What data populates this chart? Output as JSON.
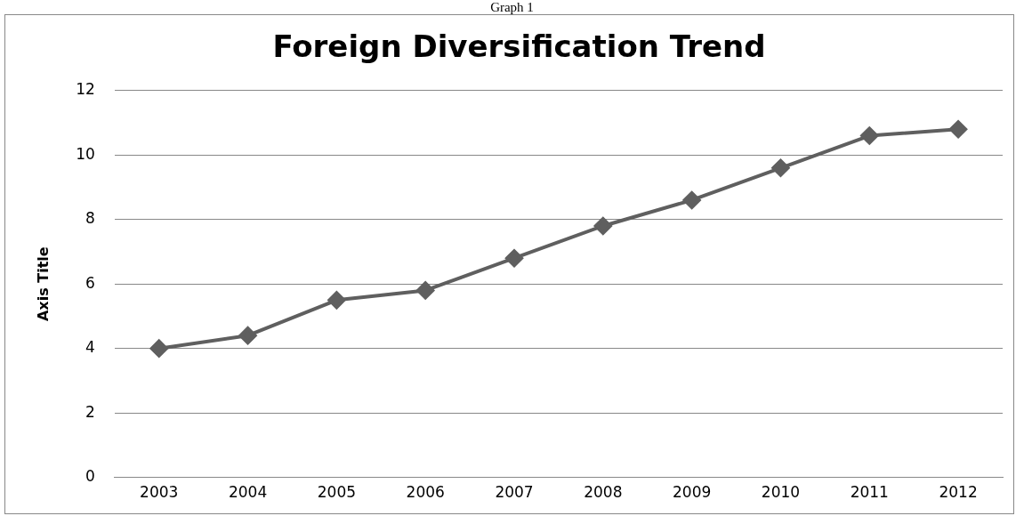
{
  "chart_data": {
    "type": "line",
    "title": "Foreign Diversification Trend",
    "ylabel": "Axis Title",
    "annotations": [
      "Graph 1"
    ],
    "categories": [
      "2003",
      "2004",
      "2005",
      "2006",
      "2007",
      "2008",
      "2009",
      "2010",
      "2011",
      "2012"
    ],
    "series": [
      {
        "color": "#5f5f5f",
        "values": [
          4.0,
          4.4,
          5.5,
          5.8,
          6.8,
          7.8,
          8.6,
          9.6,
          10.6,
          10.8
        ]
      }
    ],
    "ylim": [
      0,
      12
    ],
    "yticks": [
      0,
      2,
      4,
      6,
      8,
      10,
      12
    ],
    "grid": "y",
    "legend": false,
    "marker": "diamond",
    "line_style": "solid"
  }
}
